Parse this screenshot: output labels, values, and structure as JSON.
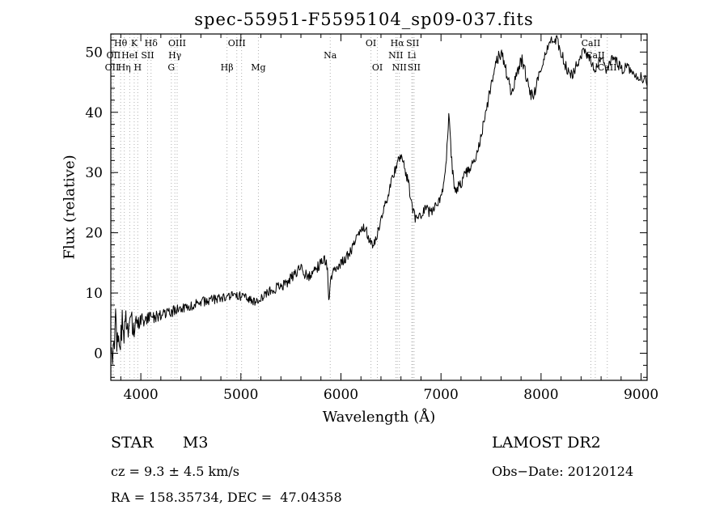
{
  "chart_data": {
    "type": "line",
    "title": "spec-55951-F5595104_sp09-037.fits",
    "xlabel": "Wavelength (Å)",
    "ylabel": "Flux (relative)",
    "xlim": [
      3700,
      9060
    ],
    "ylim": [
      -4.5,
      53
    ],
    "xticks": [
      4000,
      5000,
      6000,
      7000,
      8000,
      9000
    ],
    "yticks": [
      0,
      10,
      20,
      30,
      40,
      50
    ],
    "minor_x_step": 200,
    "minor_y_step": 2,
    "grid": false,
    "legend": "none",
    "spectral_lines": [
      {
        "wavelength": 3712,
        "label": "OII",
        "row": 2
      },
      {
        "wavelength": 3727,
        "label": "OII",
        "row": 1
      },
      {
        "wavelength": 3798,
        "label": "Hθ",
        "row": 0
      },
      {
        "wavelength": 3835,
        "label": "Hη",
        "row": 2
      },
      {
        "wavelength": 3889,
        "label": "HeI",
        "row": 1
      },
      {
        "wavelength": 3934,
        "label": "K",
        "row": 0
      },
      {
        "wavelength": 3969,
        "label": "H",
        "row": 2
      },
      {
        "wavelength": 4068,
        "label": "SII",
        "row": 1
      },
      {
        "wavelength": 4102,
        "label": "Hδ",
        "row": 0
      },
      {
        "wavelength": 4305,
        "label": "G",
        "row": 2
      },
      {
        "wavelength": 4340,
        "label": "Hγ",
        "row": 1
      },
      {
        "wavelength": 4363,
        "label": "OIII",
        "row": 0
      },
      {
        "wavelength": 4861,
        "label": "Hβ",
        "row": 2
      },
      {
        "wavelength": 4959,
        "label": "OIII",
        "row": 0
      },
      {
        "wavelength": 5007,
        "label": "",
        "row": 0
      },
      {
        "wavelength": 5175,
        "label": "Mg",
        "row": 2
      },
      {
        "wavelength": 5893,
        "label": "Na",
        "row": 1
      },
      {
        "wavelength": 6300,
        "label": "OI",
        "row": 0
      },
      {
        "wavelength": 6364,
        "label": "OI",
        "row": 2
      },
      {
        "wavelength": 6548,
        "label": "NII",
        "row": 1
      },
      {
        "wavelength": 6563,
        "label": "Hα",
        "row": 0
      },
      {
        "wavelength": 6584,
        "label": "NII",
        "row": 2
      },
      {
        "wavelength": 6708,
        "label": "Li",
        "row": 1
      },
      {
        "wavelength": 6717,
        "label": "SII",
        "row": 0
      },
      {
        "wavelength": 6731,
        "label": "SII",
        "row": 2
      },
      {
        "wavelength": 8498,
        "label": "CaII",
        "row": 0
      },
      {
        "wavelength": 8542,
        "label": "CaII",
        "row": 1
      },
      {
        "wavelength": 8662,
        "label": "CaII",
        "row": 2
      }
    ],
    "series": [
      {
        "name": "flux",
        "anchors": [
          [
            3700,
            1.5
          ],
          [
            3712,
            -2.5
          ],
          [
            3725,
            4
          ],
          [
            3737,
            0
          ],
          [
            3750,
            6
          ],
          [
            3765,
            1
          ],
          [
            3780,
            4.5
          ],
          [
            3800,
            3
          ],
          [
            3815,
            6
          ],
          [
            3830,
            2.5
          ],
          [
            3845,
            5.5
          ],
          [
            3860,
            3.5
          ],
          [
            3875,
            5
          ],
          [
            3890,
            4
          ],
          [
            3905,
            5.5
          ],
          [
            3920,
            4.5
          ],
          [
            3935,
            4
          ],
          [
            3950,
            5.2
          ],
          [
            3970,
            4.6
          ],
          [
            4000,
            5.5
          ],
          [
            4030,
            5.2
          ],
          [
            4060,
            5.8
          ],
          [
            4100,
            6
          ],
          [
            4150,
            6.2
          ],
          [
            4200,
            6.4
          ],
          [
            4250,
            6.6
          ],
          [
            4300,
            6.9
          ],
          [
            4350,
            7.1
          ],
          [
            4400,
            7.4
          ],
          [
            4450,
            7.6
          ],
          [
            4500,
            7.9
          ],
          [
            4550,
            8.1
          ],
          [
            4600,
            8.4
          ],
          [
            4650,
            8.7
          ],
          [
            4700,
            8.9
          ],
          [
            4750,
            9
          ],
          [
            4800,
            9
          ],
          [
            4850,
            9.2
          ],
          [
            4900,
            9.5
          ],
          [
            4950,
            9.3
          ],
          [
            5000,
            9.5
          ],
          [
            5050,
            9.2
          ],
          [
            5100,
            8.8
          ],
          [
            5150,
            8.4
          ],
          [
            5200,
            8.9
          ],
          [
            5250,
            9.8
          ],
          [
            5300,
            10.4
          ],
          [
            5350,
            10.8
          ],
          [
            5400,
            11.1
          ],
          [
            5450,
            11.6
          ],
          [
            5500,
            12.4
          ],
          [
            5550,
            13.4
          ],
          [
            5600,
            14
          ],
          [
            5640,
            13.2
          ],
          [
            5680,
            12.8
          ],
          [
            5720,
            13.2
          ],
          [
            5760,
            14.2
          ],
          [
            5800,
            15
          ],
          [
            5840,
            15.4
          ],
          [
            5865,
            14.5
          ],
          [
            5880,
            8
          ],
          [
            5890,
            11
          ],
          [
            5905,
            13
          ],
          [
            5930,
            14
          ],
          [
            5960,
            14.6
          ],
          [
            6000,
            15
          ],
          [
            6040,
            15.8
          ],
          [
            6080,
            16.6
          ],
          [
            6120,
            17.6
          ],
          [
            6160,
            19
          ],
          [
            6200,
            20.6
          ],
          [
            6240,
            21
          ],
          [
            6270,
            19.6
          ],
          [
            6300,
            17.8
          ],
          [
            6330,
            18.4
          ],
          [
            6360,
            19.6
          ],
          [
            6400,
            21.8
          ],
          [
            6440,
            24.4
          ],
          [
            6480,
            27
          ],
          [
            6520,
            29.6
          ],
          [
            6560,
            31.4
          ],
          [
            6590,
            32.4
          ],
          [
            6610,
            32.2
          ],
          [
            6640,
            30.6
          ],
          [
            6670,
            28.6
          ],
          [
            6700,
            25.6
          ],
          [
            6725,
            23.2
          ],
          [
            6750,
            22.2
          ],
          [
            6780,
            22.6
          ],
          [
            6810,
            23.4
          ],
          [
            6840,
            24
          ],
          [
            6870,
            23.6
          ],
          [
            6900,
            23.4
          ],
          [
            6930,
            23.8
          ],
          [
            6960,
            24.4
          ],
          [
            7000,
            26
          ],
          [
            7030,
            28.6
          ],
          [
            7060,
            34
          ],
          [
            7080,
            41
          ],
          [
            7095,
            35
          ],
          [
            7115,
            30
          ],
          [
            7140,
            27.4
          ],
          [
            7170,
            27.6
          ],
          [
            7200,
            28.2
          ],
          [
            7240,
            29.6
          ],
          [
            7280,
            30.8
          ],
          [
            7320,
            31.8
          ],
          [
            7360,
            33.4
          ],
          [
            7400,
            36
          ],
          [
            7440,
            39.4
          ],
          [
            7480,
            43
          ],
          [
            7520,
            45.8
          ],
          [
            7560,
            48.4
          ],
          [
            7590,
            49.8
          ],
          [
            7610,
            49.4
          ],
          [
            7640,
            47.6
          ],
          [
            7670,
            45.2
          ],
          [
            7700,
            43.6
          ],
          [
            7730,
            44.8
          ],
          [
            7760,
            46.6
          ],
          [
            7790,
            48.2
          ],
          [
            7810,
            48.6
          ],
          [
            7840,
            46.8
          ],
          [
            7870,
            44.6
          ],
          [
            7900,
            42.8
          ],
          [
            7930,
            43.2
          ],
          [
            7960,
            44.8
          ],
          [
            8000,
            47
          ],
          [
            8040,
            49.6
          ],
          [
            8080,
            51.6
          ],
          [
            8120,
            52.4
          ],
          [
            8160,
            52
          ],
          [
            8200,
            50
          ],
          [
            8240,
            48
          ],
          [
            8280,
            46.2
          ],
          [
            8320,
            46.4
          ],
          [
            8360,
            48
          ],
          [
            8400,
            49.6
          ],
          [
            8440,
            50.2
          ],
          [
            8480,
            49.2
          ],
          [
            8510,
            48
          ],
          [
            8540,
            46.8
          ],
          [
            8570,
            48
          ],
          [
            8600,
            49.4
          ],
          [
            8630,
            48.2
          ],
          [
            8660,
            46.6
          ],
          [
            8690,
            48.6
          ],
          [
            8720,
            49
          ],
          [
            8760,
            48.2
          ],
          [
            8800,
            47.2
          ],
          [
            8850,
            47.6
          ],
          [
            8900,
            46.8
          ],
          [
            8950,
            46.2
          ],
          [
            9000,
            45.8
          ],
          [
            9060,
            45.4
          ]
        ]
      }
    ],
    "noise": {
      "seed": 7,
      "step": 6,
      "amplitude_anchors": [
        [
          3700,
          3.2
        ],
        [
          3820,
          2.8
        ],
        [
          3900,
          2.0
        ],
        [
          4000,
          1.2
        ],
        [
          4300,
          0.9
        ],
        [
          4700,
          0.8
        ],
        [
          5200,
          0.8
        ],
        [
          5700,
          0.9
        ],
        [
          6200,
          0.9
        ],
        [
          6700,
          0.9
        ],
        [
          7200,
          1.0
        ],
        [
          7700,
          1.1
        ],
        [
          8200,
          0.9
        ],
        [
          8700,
          0.9
        ],
        [
          9060,
          1.0
        ]
      ]
    },
    "colors": {
      "trace": "#000000",
      "frame": "#000000",
      "line_marker": "#b0b0b0",
      "background": "#ffffff"
    }
  },
  "footer": {
    "star_type": "STAR      M3",
    "survey": "LAMOST DR2",
    "cz": "cz = 9.3 ± 4.5 km/s",
    "obs_date": "Obs−Date: 20120124",
    "coords": "RA = 158.35734, DEC =  47.04358"
  }
}
